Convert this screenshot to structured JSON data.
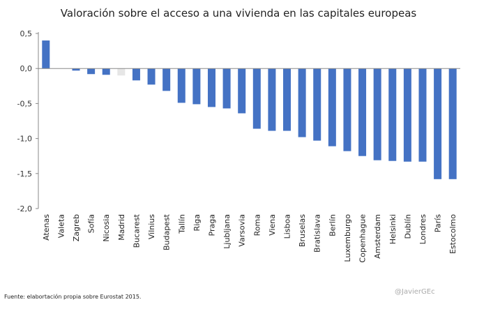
{
  "chart_data": {
    "type": "bar",
    "title": "Valoración sobre el acceso a una vivienda en las capitales europeas",
    "xlabel": "",
    "ylabel": "",
    "ylim": [
      -2.0,
      0.5
    ],
    "yticks": [
      "0,5",
      "0,0",
      "-0,5",
      "-1,0",
      "-1,5",
      "-2,0"
    ],
    "ytick_values": [
      0.5,
      0.0,
      -0.5,
      -1.0,
      -1.5,
      -2.0
    ],
    "grid": false,
    "categories": [
      "Atenas",
      "Valeta",
      "Zagreb",
      "Sofía",
      "Nicosia",
      "Madrid",
      "Bucarest",
      "Vilnius",
      "Budapest",
      "Tallín",
      "Riga",
      "Praga",
      "Ljubljana",
      "Varsovia",
      "Roma",
      "Viena",
      "Lisboa",
      "Bruselas",
      "Bratislava",
      "Berlín",
      "Luxemburgo",
      "Copenhague",
      "Amsterdam",
      "Helsinki",
      "Dublín",
      "Londres",
      "París",
      "Estocolmo"
    ],
    "values": [
      0.4,
      0.0,
      -0.03,
      -0.08,
      -0.09,
      -0.1,
      -0.17,
      -0.23,
      -0.32,
      -0.49,
      -0.51,
      -0.55,
      -0.57,
      -0.64,
      -0.86,
      -0.89,
      -0.89,
      -0.98,
      -1.03,
      -1.11,
      -1.18,
      -1.25,
      -1.31,
      -1.32,
      -1.33,
      -1.33,
      -1.58,
      -1.58
    ],
    "highlight": "Madrid",
    "colors": {
      "bar": "#4472c4",
      "highlight": "#e6e6e6",
      "axis": "#888888"
    }
  },
  "footer": {
    "source": "Fuente: elabortación propia sobre Eurostat 2015.",
    "credit": "@JavierGEc"
  }
}
